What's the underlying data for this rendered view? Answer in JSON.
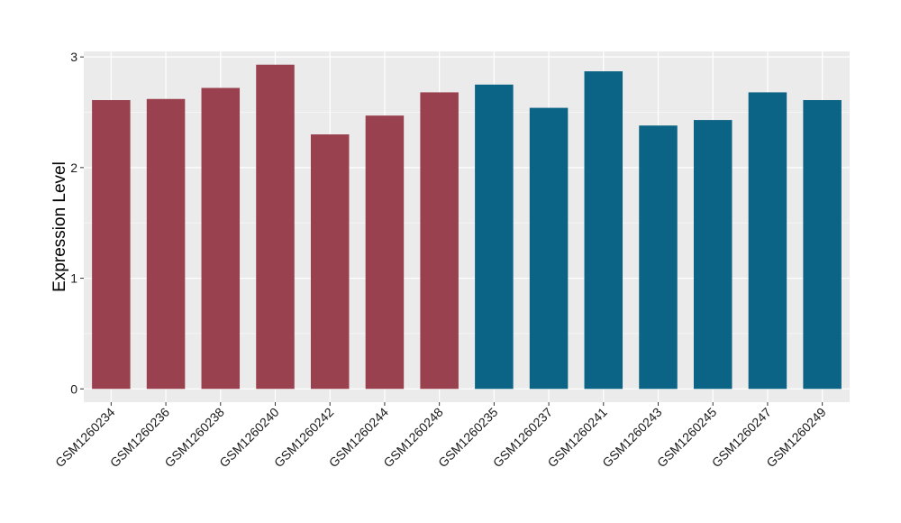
{
  "chart_data": {
    "type": "bar",
    "title": "",
    "xlabel": "",
    "ylabel": "Expression Level",
    "ylim": [
      -0.12,
      3.05
    ],
    "yticks": [
      0,
      1,
      2,
      3
    ],
    "grid": true,
    "legend": "none",
    "categories": [
      "GSM1260234",
      "GSM1260236",
      "GSM1260238",
      "GSM1260240",
      "GSM1260242",
      "GSM1260244",
      "GSM1260248",
      "GSM1260235",
      "GSM1260237",
      "GSM1260241",
      "GSM1260243",
      "GSM1260245",
      "GSM1260247",
      "GSM1260249"
    ],
    "values": [
      2.61,
      2.62,
      2.72,
      2.93,
      2.3,
      2.47,
      2.68,
      2.75,
      2.54,
      2.87,
      2.38,
      2.43,
      2.68,
      2.61
    ],
    "group_colors": [
      "#9a4150",
      "#9a4150",
      "#9a4150",
      "#9a4150",
      "#9a4150",
      "#9a4150",
      "#9a4150",
      "#0b6485",
      "#0b6485",
      "#0b6485",
      "#0b6485",
      "#0b6485",
      "#0b6485",
      "#0b6485"
    ],
    "colors": {
      "panel": "#ebebeb",
      "grid_major": "#ffffff",
      "grid_minor": "#f5f5f5",
      "tick": "#333333"
    }
  }
}
